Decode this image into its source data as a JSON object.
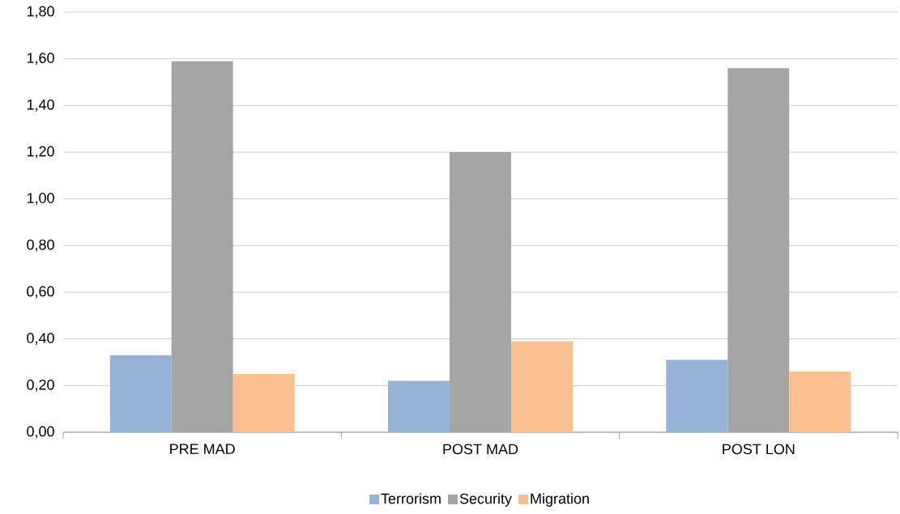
{
  "chart_data": {
    "type": "bar",
    "categories": [
      "PRE MAD",
      "POST MAD",
      "POST LON"
    ],
    "series": [
      {
        "name": "Terrorism",
        "color": "#95b3d7",
        "values": [
          0.33,
          0.22,
          0.31
        ]
      },
      {
        "name": "Security",
        "color": "#a5a5a5",
        "values": [
          1.59,
          1.2,
          1.56
        ]
      },
      {
        "name": "Migration",
        "color": "#fac090",
        "values": [
          0.25,
          0.39,
          0.26
        ]
      }
    ],
    "ylim": [
      0,
      1.8
    ],
    "yticks": [
      {
        "value": 0,
        "label": "0,00"
      },
      {
        "value": 0.2,
        "label": "0,20"
      },
      {
        "value": 0.4,
        "label": "0,40"
      },
      {
        "value": 0.6,
        "label": "0,60"
      },
      {
        "value": 0.8,
        "label": "0,80"
      },
      {
        "value": 1.0,
        "label": "1,00"
      },
      {
        "value": 1.2,
        "label": "1,20"
      },
      {
        "value": 1.4,
        "label": "1,40"
      },
      {
        "value": 1.6,
        "label": "1,60"
      },
      {
        "value": 1.8,
        "label": "1,80"
      }
    ],
    "grid": "y",
    "legend": "bottom"
  }
}
